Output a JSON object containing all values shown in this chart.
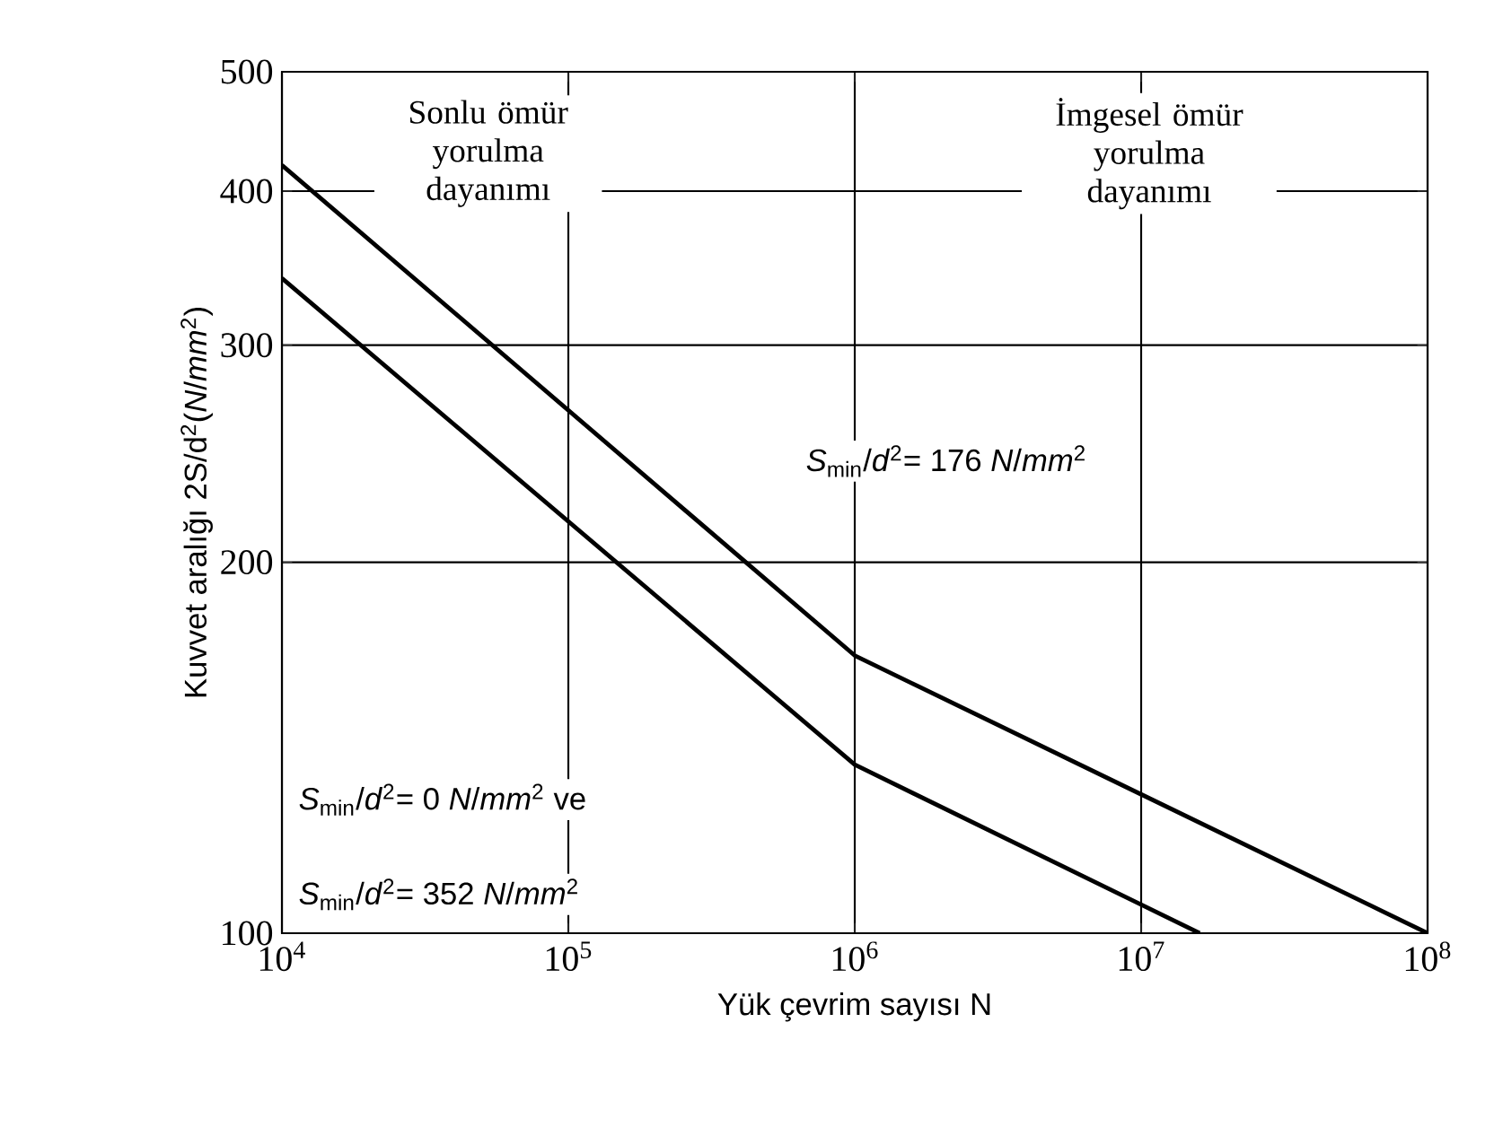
{
  "chart_data": {
    "type": "line",
    "xlabel": "Yük çevrim sayısı N",
    "ylabel": "Kuvvet aralığı  2S/d$^{2}$(*N*/*mm*$^{2}$)",
    "log": "xy",
    "grid": true,
    "xlim": [
      10000,
      100000000
    ],
    "ylim": [
      100,
      500
    ],
    "xticks": [
      {
        "value": 10000,
        "label": "10$^{4}$"
      },
      {
        "value": 100000,
        "label": "10$^{5}$"
      },
      {
        "value": 1000000,
        "label": "10$^{6}$"
      },
      {
        "value": 10000000,
        "label": "10$^{7}$"
      },
      {
        "value": 100000000,
        "label": "10$^{8}$"
      }
    ],
    "yticks": [
      100,
      200,
      300,
      400,
      500
    ],
    "series": [
      {
        "color": "#000000",
        "x": [
          10000,
          1000000,
          100000000
        ],
        "values": [
          420,
          168,
          100
        ]
      },
      {
        "color": "#000000",
        "x": [
          10000,
          1000000,
          16000000
        ],
        "values": [
          340,
          137,
          100
        ]
      }
    ],
    "annotations": [
      "Sonlu ömür yorulma dayanımı",
      "İmgesel ömür yorulma dayanımı",
      "*S*$_{min}$/*d*$^{2}$= 176 *N*/*mm*$^{2}$",
      "*S*$_{min}$/*d*$^{2}$= 0 *N*/*mm*$^{2}$ ve",
      "*S*$_{min}$/*d*$^{2}$= 352 *N*/*mm*$^{2}$"
    ]
  }
}
